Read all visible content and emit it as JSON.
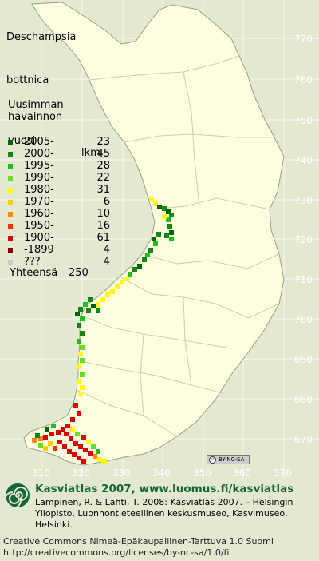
{
  "species": {
    "line1": "Deschampsia",
    "line2": "bottnica"
  },
  "legend": {
    "heading": [
      "Uusimman",
      "havainnon"
    ],
    "col_year": "vuosi",
    "col_count": "lkm",
    "rows": [
      {
        "label": "2005-",
        "count": "23",
        "color": "#006400"
      },
      {
        "label": "2000-",
        "count": "45",
        "color": "#118811"
      },
      {
        "label": "1995-",
        "count": "28",
        "color": "#22bb22"
      },
      {
        "label": "1990-",
        "count": "22",
        "color": "#66dd22"
      },
      {
        "label": "1980-",
        "count": "31",
        "color": "#ffff00"
      },
      {
        "label": "1970-",
        "count": "6",
        "color": "#ffcc00"
      },
      {
        "label": "1960-",
        "count": "10",
        "color": "#ff8800"
      },
      {
        "label": "1950-",
        "count": "16",
        "color": "#ff3300"
      },
      {
        "label": "1900-",
        "count": "61",
        "color": "#dd0000"
      },
      {
        "label": "-1899",
        "count": "4",
        "color": "#880000"
      },
      {
        "label": "???",
        "count": "4",
        "color": "#c8c8c8"
      }
    ],
    "total_label": "Yhteensä",
    "total_count": "250"
  },
  "grid": {
    "y_labels": [
      "770",
      "760",
      "750",
      "740",
      "730",
      "720",
      "710",
      "700",
      "690",
      "680",
      "670"
    ],
    "x_labels": [
      "310",
      "320",
      "330",
      "340",
      "350",
      "360",
      "370"
    ]
  },
  "cc_badge": "BY-NC-SA",
  "footer": {
    "atlas_title": "Kasviatlas 2007, www.luomus.fi/kasviatlas",
    "citation": "Lampinen, R. & Lahti, T. 2008: Kasviatlas 2007. – Helsingin Yliopisto, Luonnontieteellinen keskusmuseo, Kasvimuseo, Helsinki.",
    "license_line1": "Creative Commons Nimeä-Epäkaupallinen-Tarttuva 1.0 Suomi",
    "license_line2": "http://creativecommons.org/licenses/by-nc-sa/1.0/fi"
  },
  "colors": {
    "background": "#e3e8d0",
    "land": "#fffde0",
    "border": "#c9cdb5",
    "grid": "#ffffff",
    "brand_green": "#14663a"
  }
}
